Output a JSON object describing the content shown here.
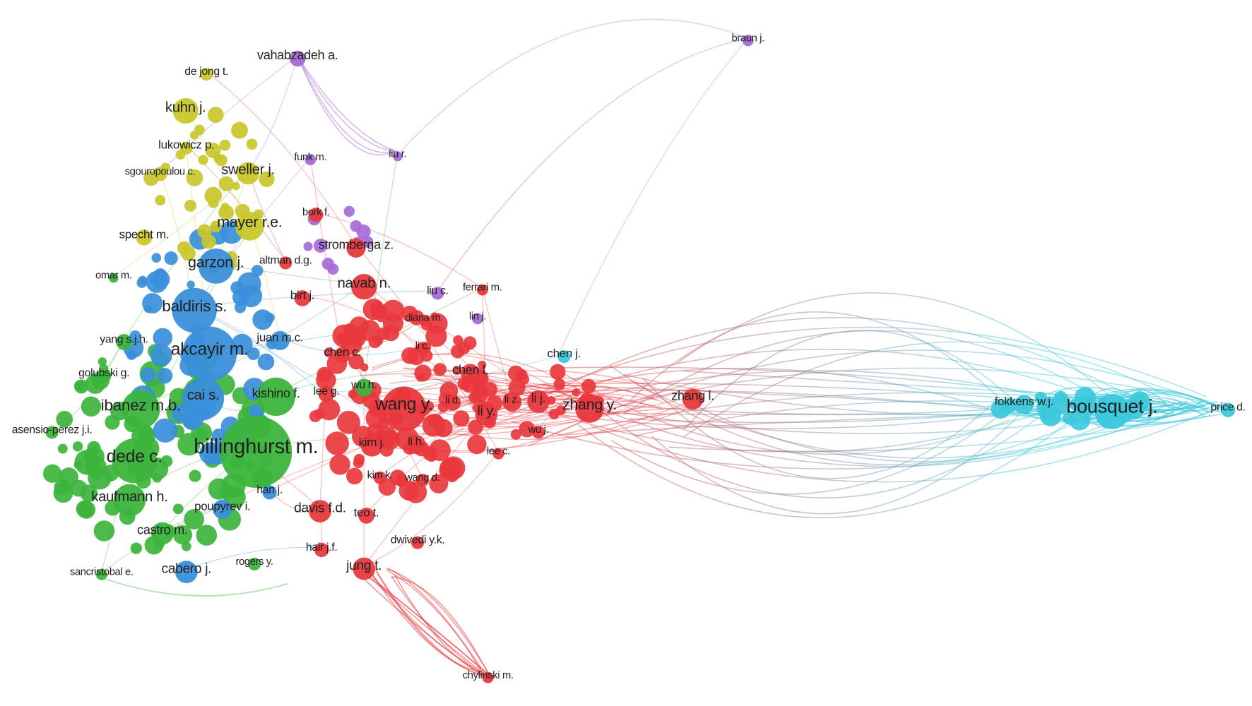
{
  "nodes": [
    {
      "label": "vahabzadeh a."
    },
    {
      "label": "braun j."
    },
    {
      "label": "de jong t."
    },
    {
      "label": "kuhn j."
    },
    {
      "label": "lukowicz p."
    },
    {
      "label": "funk m."
    },
    {
      "label": "liu r."
    },
    {
      "label": "sgouropoulou c."
    },
    {
      "label": "sweller j."
    },
    {
      "label": "bork f."
    },
    {
      "label": "mayer r.e."
    },
    {
      "label": "specht m."
    },
    {
      "label": "stromberga z."
    },
    {
      "label": "garzon j."
    },
    {
      "label": "altman d.g."
    },
    {
      "label": "omar m."
    },
    {
      "label": "navab n."
    },
    {
      "label": "liu c."
    },
    {
      "label": "ferrari m."
    },
    {
      "label": "birt j."
    },
    {
      "label": "baldiris s."
    },
    {
      "label": "diana m."
    },
    {
      "label": "lin j."
    },
    {
      "label": "juan m.c."
    },
    {
      "label": "yang s.j.h."
    },
    {
      "label": "akcayir m."
    },
    {
      "label": "chen j."
    },
    {
      "label": "li c."
    },
    {
      "label": "chen c."
    },
    {
      "label": "golubski g."
    },
    {
      "label": "chen l."
    },
    {
      "label": "wu h."
    },
    {
      "label": "kishino f."
    },
    {
      "label": "lee g."
    },
    {
      "label": "cai s."
    },
    {
      "label": "wang y."
    },
    {
      "label": "li d."
    },
    {
      "label": "li z."
    },
    {
      "label": "li j."
    },
    {
      "label": "zhang y."
    },
    {
      "label": "zhang l."
    },
    {
      "label": "fokkens w.j."
    },
    {
      "label": "bousquet j."
    },
    {
      "label": "price d."
    },
    {
      "label": "ibanez m.b."
    },
    {
      "label": "li y."
    },
    {
      "label": "wu j."
    },
    {
      "label": "asensio-perez j.i."
    },
    {
      "label": "billinghurst m."
    },
    {
      "label": "dede c."
    },
    {
      "label": "kim j."
    },
    {
      "label": "li h."
    },
    {
      "label": "lee c."
    },
    {
      "label": "kim k."
    },
    {
      "label": "wang d."
    },
    {
      "label": "han j."
    },
    {
      "label": "kaufmann h."
    },
    {
      "label": "poupyrev i."
    },
    {
      "label": "davis f.d."
    },
    {
      "label": "teo t."
    },
    {
      "label": "castro m."
    },
    {
      "label": "dwivedi y.k."
    },
    {
      "label": "hair j.f."
    },
    {
      "label": "rogers y."
    },
    {
      "label": "jung t."
    },
    {
      "label": "cabero j."
    },
    {
      "label": "sancristobal e."
    },
    {
      "label": "chylinski m."
    }
  ]
}
